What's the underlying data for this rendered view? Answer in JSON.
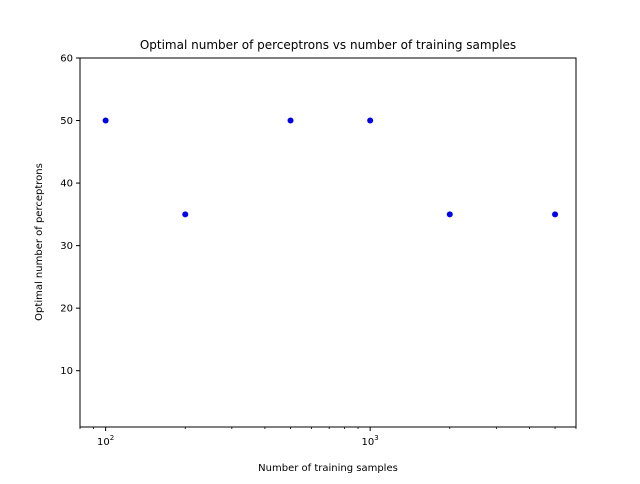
{
  "chart_data": {
    "type": "scatter",
    "title": "Optimal number of perceptrons vs number of training samples",
    "xlabel": "Number of training samples",
    "ylabel": "Optimal number of perceptrons",
    "x_scale": "log",
    "xlim": [
      80,
      6000
    ],
    "ylim": [
      1,
      60
    ],
    "x_ticks": [
      {
        "value": 100,
        "base": "10",
        "exp": "2"
      },
      {
        "value": 1000,
        "base": "10",
        "exp": "3"
      }
    ],
    "x_minor_ticks": [
      80,
      90,
      200,
      300,
      400,
      500,
      600,
      700,
      800,
      900,
      2000,
      3000,
      4000,
      5000,
      6000
    ],
    "y_ticks": [
      10,
      20,
      30,
      40,
      50,
      60
    ],
    "grid": false,
    "marker_color": "#0000ff",
    "series": [
      {
        "points": [
          {
            "x": 100,
            "y": 50
          },
          {
            "x": 200,
            "y": 35
          },
          {
            "x": 500,
            "y": 50
          },
          {
            "x": 1000,
            "y": 50
          },
          {
            "x": 2000,
            "y": 35
          },
          {
            "x": 5000,
            "y": 35
          }
        ]
      }
    ]
  }
}
